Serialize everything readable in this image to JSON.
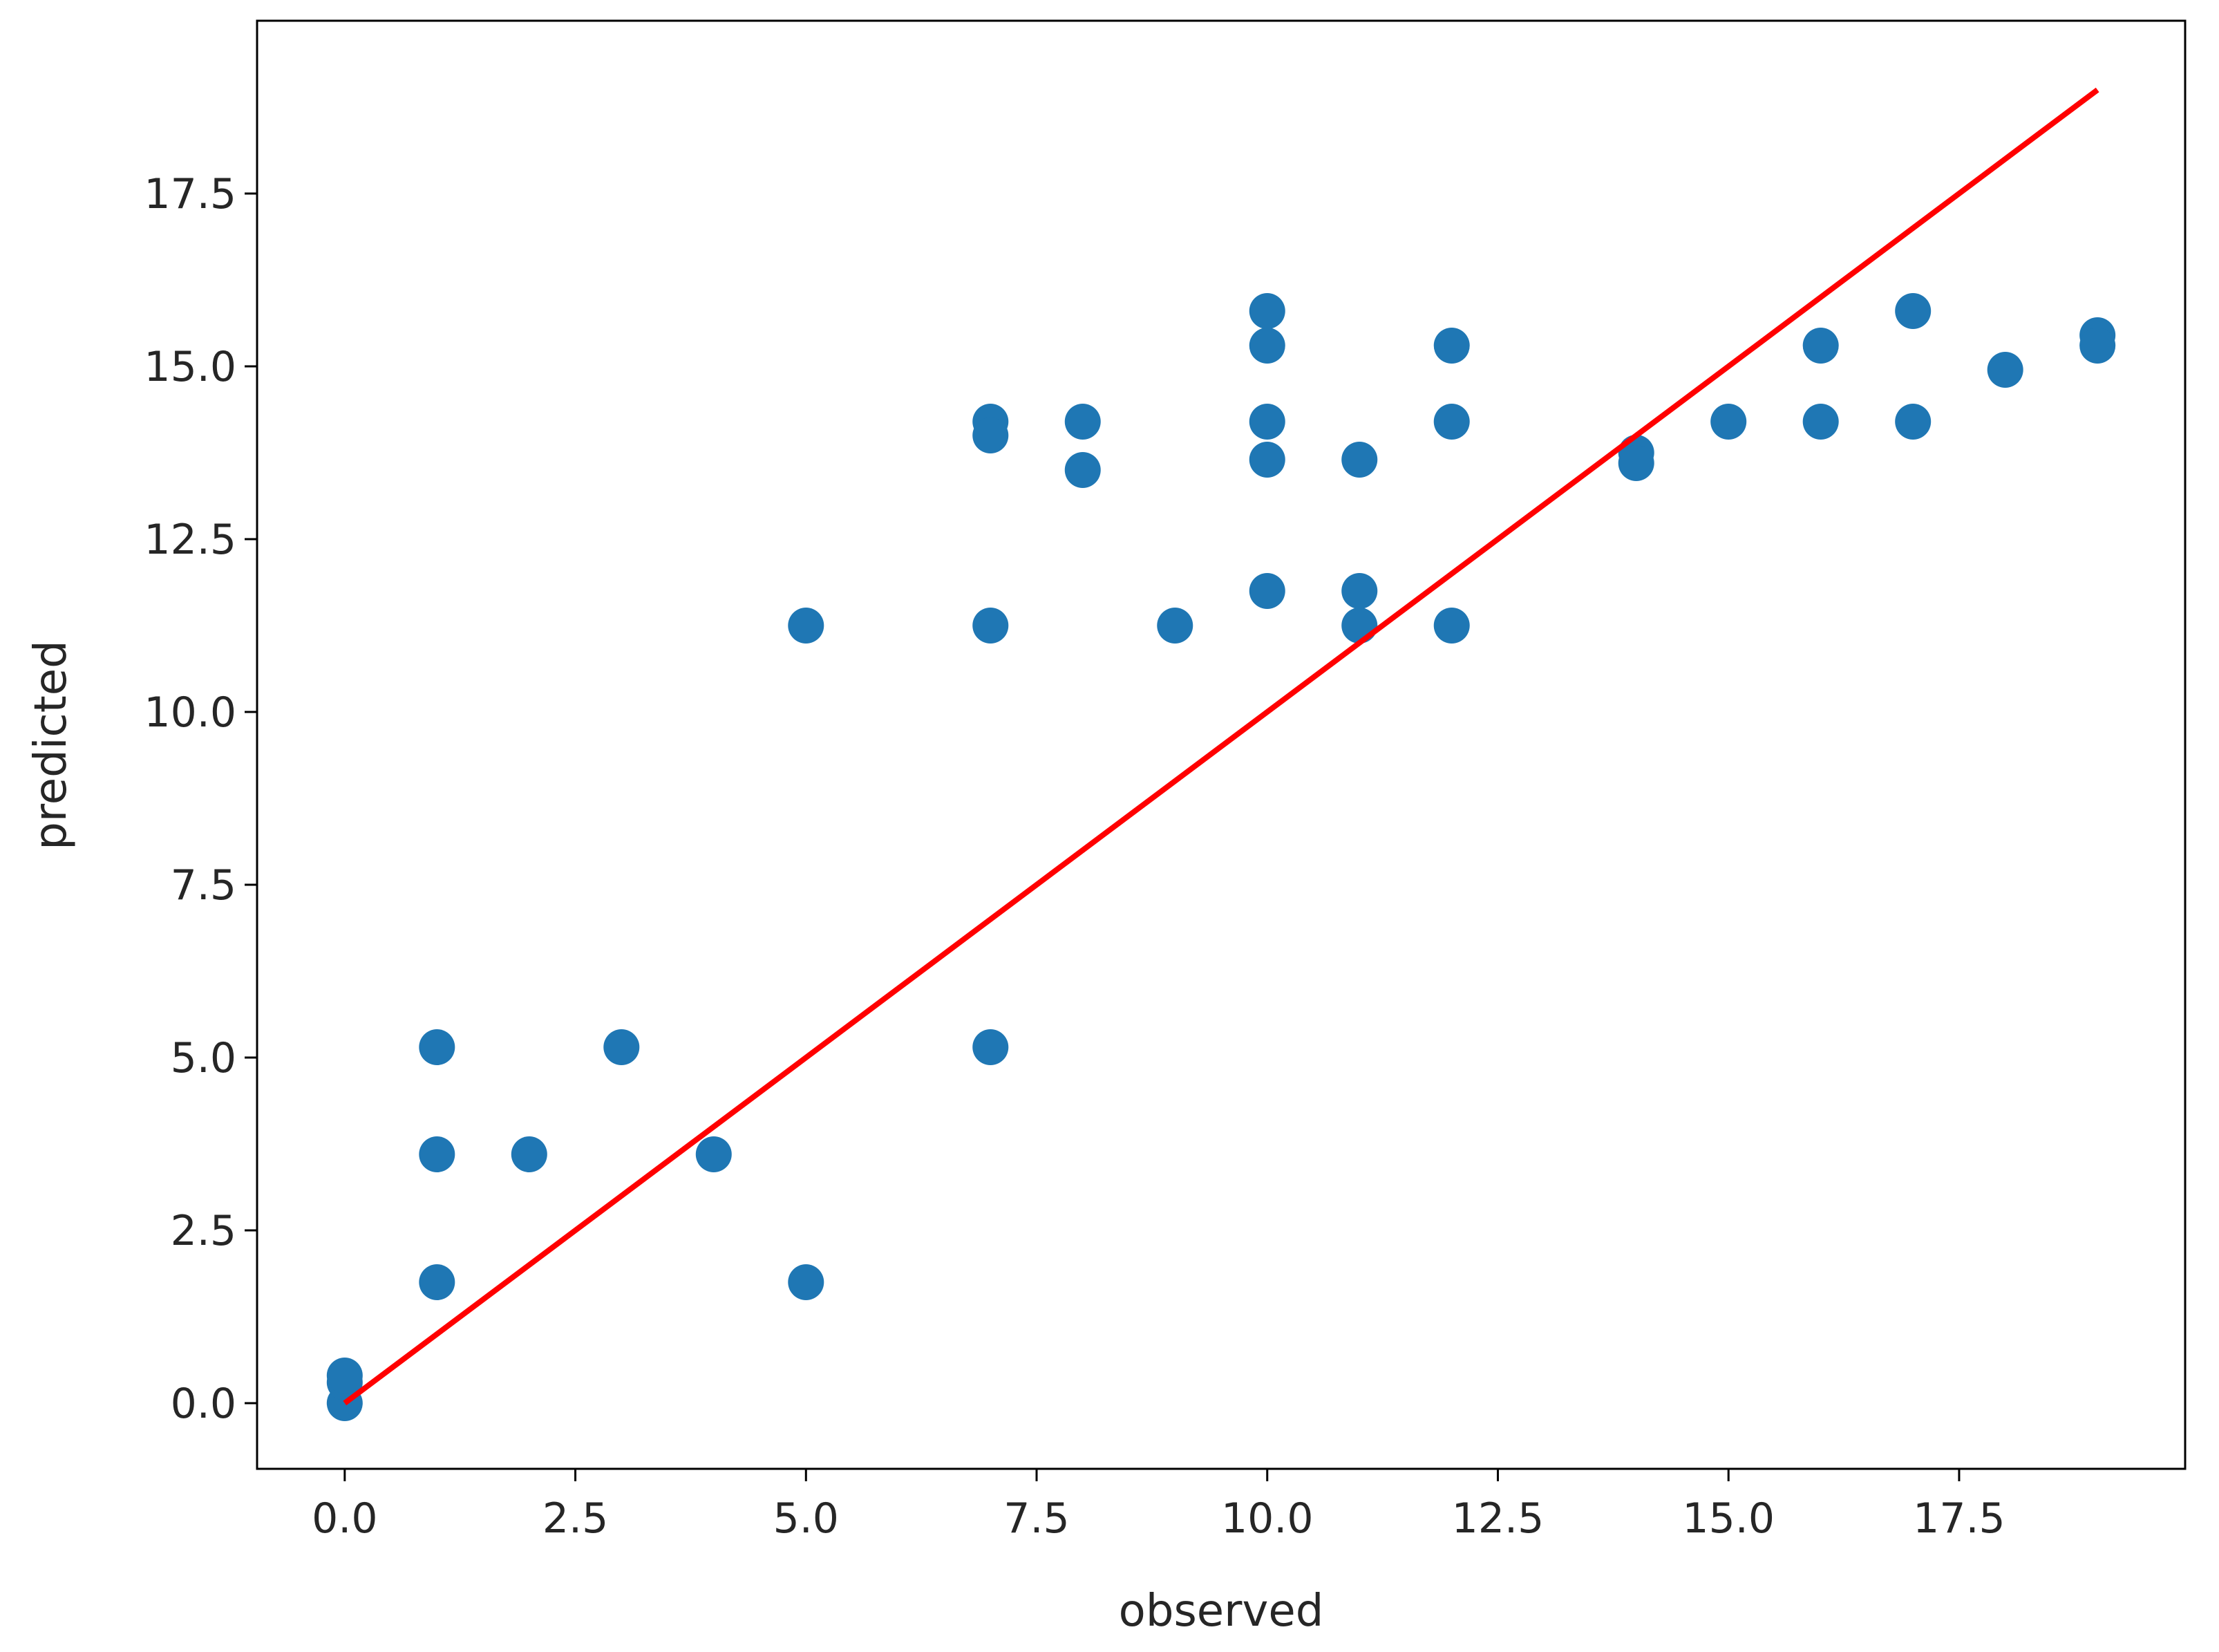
{
  "chart_data": {
    "type": "scatter",
    "xlabel": "observed",
    "ylabel": "predicted",
    "xlim": [
      -0.95,
      19.95
    ],
    "ylim": [
      -0.95,
      20.0
    ],
    "xticks": [
      0.0,
      2.5,
      5.0,
      7.5,
      10.0,
      12.5,
      15.0,
      17.5
    ],
    "xtick_labels": [
      "0.0",
      "2.5",
      "5.0",
      "7.5",
      "10.0",
      "12.5",
      "15.0",
      "17.5"
    ],
    "yticks": [
      0.0,
      2.5,
      5.0,
      7.5,
      10.0,
      12.5,
      15.0,
      17.5
    ],
    "ytick_labels": [
      "0.0",
      "2.5",
      "5.0",
      "7.5",
      "10.0",
      "12.5",
      "15.0",
      "17.5"
    ],
    "grid": false,
    "colors": {
      "points": "#1f77b4",
      "line": "#ff0000",
      "axes": "#000000"
    },
    "series": [
      {
        "kind": "scatter",
        "points": [
          [
            0,
            0.0
          ],
          [
            0,
            0.3
          ],
          [
            0,
            0.4
          ],
          [
            1,
            5.15
          ],
          [
            1,
            3.6
          ],
          [
            1,
            1.75
          ],
          [
            2,
            3.6
          ],
          [
            3,
            5.15
          ],
          [
            4,
            3.6
          ],
          [
            5,
            11.25
          ],
          [
            5,
            1.75
          ],
          [
            7,
            14.2
          ],
          [
            7,
            14.0
          ],
          [
            7,
            11.25
          ],
          [
            7,
            5.15
          ],
          [
            8,
            14.2
          ],
          [
            8,
            13.5
          ],
          [
            9,
            11.25
          ],
          [
            10,
            15.8
          ],
          [
            10,
            15.3
          ],
          [
            10,
            14.2
          ],
          [
            10,
            13.65
          ],
          [
            10,
            11.75
          ],
          [
            11,
            13.65
          ],
          [
            11,
            11.75
          ],
          [
            11,
            11.25
          ],
          [
            12,
            15.3
          ],
          [
            12,
            14.2
          ],
          [
            12,
            11.25
          ],
          [
            14,
            13.75
          ],
          [
            14,
            13.6
          ],
          [
            15,
            14.2
          ],
          [
            16,
            15.3
          ],
          [
            16,
            14.2
          ],
          [
            17,
            15.8
          ],
          [
            17,
            14.2
          ],
          [
            18,
            14.95
          ],
          [
            19,
            15.45
          ],
          [
            19,
            15.3
          ]
        ]
      },
      {
        "kind": "line",
        "points": [
          [
            0,
            0
          ],
          [
            19,
            19
          ]
        ]
      }
    ]
  }
}
